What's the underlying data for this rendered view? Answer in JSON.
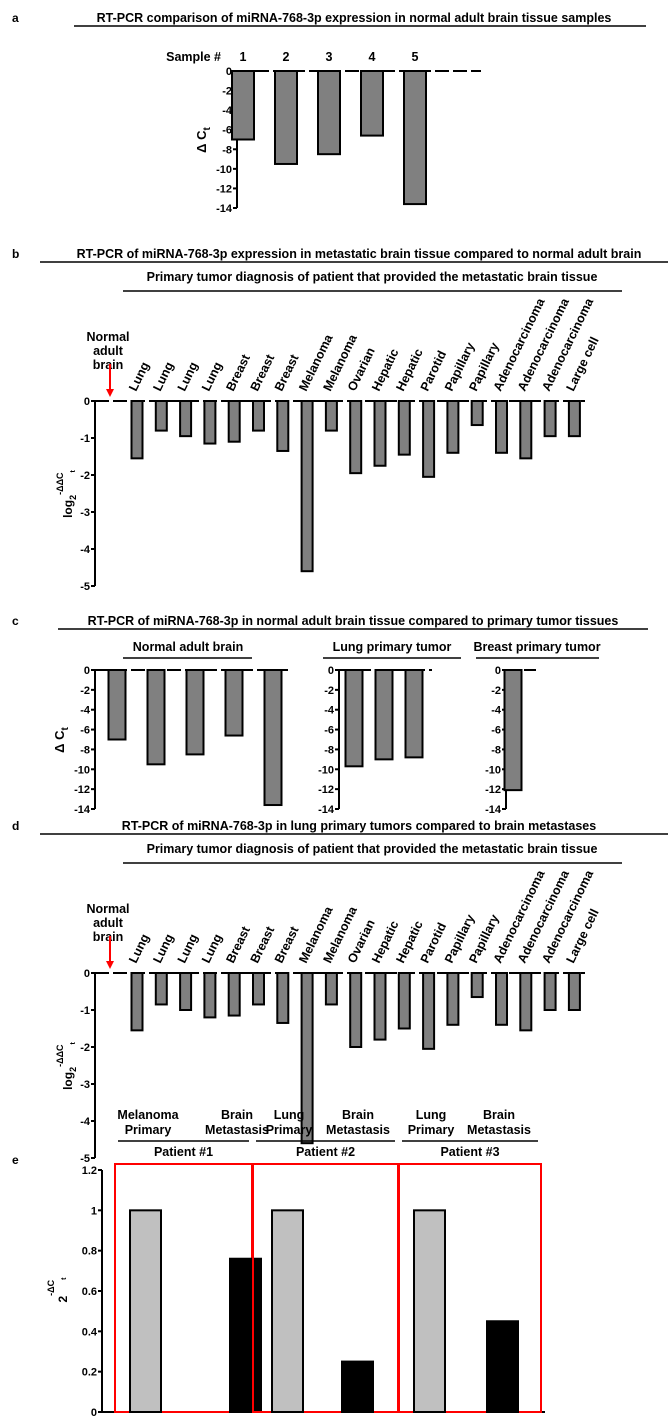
{
  "colors": {
    "gray_bar": "#808080",
    "light_bar": "#c0c0c0",
    "black_bar": "#000000",
    "red": "#ff0000"
  },
  "panel_letters": {
    "a": "a",
    "b": "b",
    "c": "c",
    "d": "d",
    "e": "e"
  },
  "chart_data": [
    {
      "id": "a",
      "type": "bar",
      "title": "RT-PCR comparison of miRNA-768-3p expression in normal adult brain tissue samples",
      "xlabel": "Sample #",
      "ylabel": "Δ C",
      "ylabel_sub": "t",
      "categories": [
        "1",
        "2",
        "3",
        "4",
        "5"
      ],
      "values": [
        -7,
        -9.5,
        -8.5,
        -6.6,
        -13.6
      ],
      "ylim": [
        -14,
        0
      ],
      "yticks": [
        "0",
        "-2",
        "-4",
        "-6",
        "-8",
        "-10",
        "-12",
        "-14"
      ]
    },
    {
      "id": "b",
      "type": "bar",
      "title": "RT-PCR of miRNA-768-3p expression in metastatic brain tissue compared to normal adult brain",
      "subtitle": "Primary tumor diagnosis of patient that provided the metastatic brain tissue",
      "reference_label": [
        "Normal",
        "adult",
        "brain"
      ],
      "ylabel": "log",
      "ylabel_sub": "2",
      "ylabel_sup": "-ΔΔC",
      "ylabel_supsub": "t",
      "categories": [
        "Lung",
        "Lung",
        "Lung",
        "Lung",
        "Breast",
        "Breast",
        "Breast",
        "Melanoma",
        "Melanoma",
        "Ovarian",
        "Hepatic",
        "Hepatic",
        "Parotid",
        "Papillary",
        "Papillary",
        "Adenocarcinoma",
        "Adenocarcinoma",
        "Adenocarcinoma",
        "Large cell"
      ],
      "values": [
        -1.55,
        -0.8,
        -0.95,
        -1.15,
        -1.1,
        -0.8,
        -1.35,
        -4.6,
        -0.8,
        -1.95,
        -1.75,
        -1.45,
        -2.05,
        -1.4,
        -0.65,
        -1.4,
        -1.55,
        -0.95,
        -0.95
      ],
      "ylim": [
        -5,
        0
      ],
      "yticks": [
        "0",
        "-1",
        "-2",
        "-3",
        "-4",
        "-5"
      ]
    },
    {
      "id": "c",
      "type": "bar",
      "title": "RT-PCR of miRNA-768-3p in normal adult brain tissue compared to primary tumor tissues",
      "ylabel": "Δ C",
      "ylabel_sub": "t",
      "ylim": [
        -14,
        0
      ],
      "yticks": [
        "0",
        "-2",
        "-4",
        "-6",
        "-8",
        "-10",
        "-12",
        "-14"
      ],
      "groups": [
        {
          "name": "Normal adult brain",
          "values": [
            -7,
            -9.5,
            -8.5,
            -6.6,
            -13.6
          ]
        },
        {
          "name": "Lung primary tumor",
          "values": [
            -9.7,
            -9,
            -8.8
          ]
        },
        {
          "name": "Breast primary tumor",
          "values": [
            -12.1
          ]
        }
      ]
    },
    {
      "id": "d",
      "type": "bar",
      "title": "RT-PCR of miRNA-768-3p in lung primary tumors compared to brain metastases",
      "subtitle": "Primary tumor diagnosis of patient that provided the metastatic brain tissue",
      "reference_label": [
        "Normal",
        "adult",
        "brain"
      ],
      "ylabel": "log",
      "ylabel_sub": "2",
      "ylabel_sup": "-ΔΔC",
      "ylabel_supsub": "t",
      "categories": [
        "Lung",
        "Lung",
        "Lung",
        "Lung",
        "Breast",
        "Breast",
        "Breast",
        "Melanoma",
        "Melanoma",
        "Ovarian",
        "Hepatic",
        "Hepatic",
        "Parotid",
        "Papillary",
        "Papillary",
        "Adenocarcinoma",
        "Adenocarcinoma",
        "Adenocarcinoma",
        "Large cell"
      ],
      "values": [
        -1.55,
        -0.85,
        -1.0,
        -1.2,
        -1.15,
        -0.85,
        -1.35,
        -4.6,
        -0.85,
        -2.0,
        -1.8,
        -1.5,
        -2.05,
        -1.4,
        -0.65,
        -1.4,
        -1.55,
        -1.0,
        -1.0
      ],
      "ylim": [
        -5,
        0
      ],
      "yticks": [
        "0",
        "-1",
        "-2",
        "-3",
        "-4",
        "-5"
      ]
    },
    {
      "id": "e",
      "type": "bar",
      "ylabel": "2",
      "ylabel_sup": "-ΔC",
      "ylabel_supsub": "t",
      "ylim": [
        0,
        1.2
      ],
      "yticks": [
        "0",
        "0.2",
        "0.4",
        "0.6",
        "0.8",
        "1",
        "1.2"
      ],
      "patients": [
        {
          "name": "Patient #1",
          "labels": [
            [
              "Melanoma",
              "Primary"
            ],
            [
              "Brain",
              "Metastasis"
            ]
          ],
          "values": [
            1,
            0.76
          ]
        },
        {
          "name": "Patient #2",
          "labels": [
            [
              "Lung",
              "Primary"
            ],
            [
              "Brain",
              "Metastasis"
            ]
          ],
          "values": [
            1,
            0.25
          ]
        },
        {
          "name": "Patient #3",
          "labels": [
            [
              "Lung",
              "Primary"
            ],
            [
              "Brain",
              "Metastasis"
            ]
          ],
          "values": [
            1,
            0.45
          ]
        }
      ]
    }
  ]
}
